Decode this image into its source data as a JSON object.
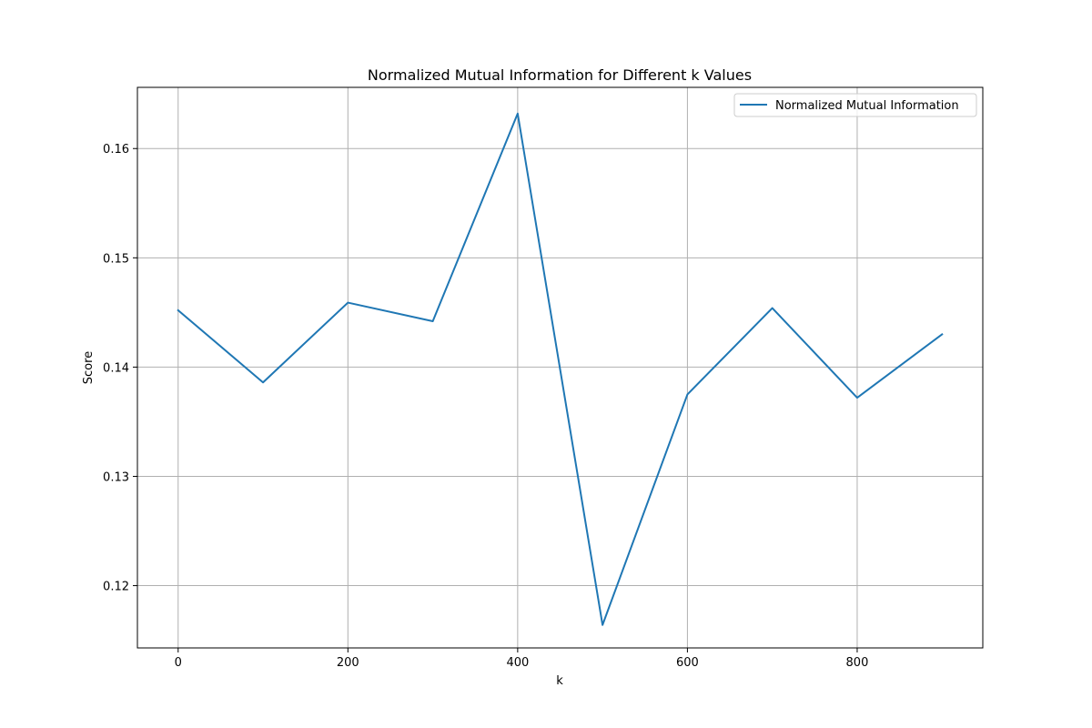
{
  "chart_data": {
    "type": "line",
    "title": "Normalized Mutual Information for Different k Values",
    "xlabel": "k",
    "ylabel": "Score",
    "xlim": [
      -48,
      948
    ],
    "ylim": [
      0.1143,
      0.1656
    ],
    "xticks": [
      0,
      200,
      400,
      600,
      800
    ],
    "xtick_labels": [
      "0",
      "200",
      "400",
      "600",
      "800"
    ],
    "yticks": [
      0.12,
      0.13,
      0.14,
      0.15,
      0.16
    ],
    "ytick_labels": [
      "0.12",
      "0.13",
      "0.14",
      "0.15",
      "0.16"
    ],
    "grid": true,
    "legend_position": "upper right",
    "series": [
      {
        "name": "Normalized Mutual Information",
        "color": "#1f77b4",
        "x": [
          0,
          100,
          200,
          300,
          400,
          500,
          600,
          700,
          800,
          900
        ],
        "y": [
          0.1452,
          0.1386,
          0.1459,
          0.1442,
          0.1632,
          0.1164,
          0.1375,
          0.1454,
          0.1372,
          0.143
        ]
      }
    ]
  }
}
